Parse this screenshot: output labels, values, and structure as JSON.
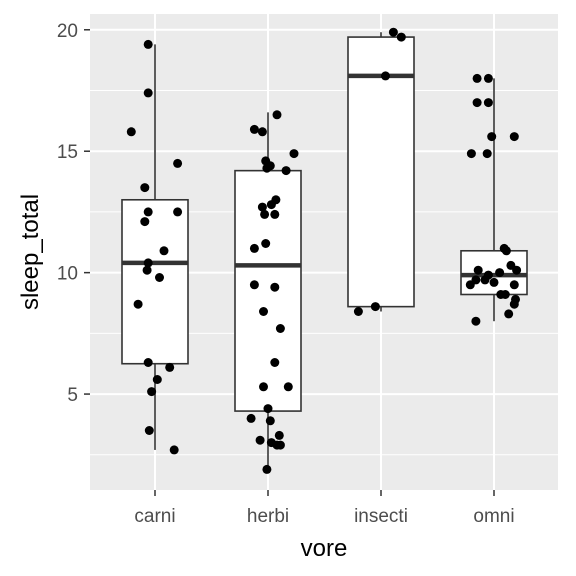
{
  "chart_data": {
    "type": "boxplot_with_jitter",
    "xlabel": "vore",
    "ylabel": "sleep_total",
    "ylim": [
      1.05,
      20.65
    ],
    "y_major_ticks": [
      5,
      10,
      15,
      20
    ],
    "y_minor_ticks": [
      2.5,
      7.5,
      12.5,
      17.5
    ],
    "grid": true,
    "legend": "none",
    "colors": {
      "panel_background": "#ebebeb",
      "grid": "#ffffff",
      "box_fill": "#ffffff",
      "box_line": "#333333",
      "points": "#000000",
      "tick_text": "#4d4d4d"
    },
    "categories": [
      "carni",
      "herbi",
      "insecti",
      "omni"
    ],
    "boxes": [
      {
        "category": "carni",
        "whisker_low": 2.7,
        "q1": 6.25,
        "median": 10.4,
        "q3": 13.0,
        "whisker_high": 19.4
      },
      {
        "category": "herbi",
        "whisker_low": 1.9,
        "q1": 4.3,
        "median": 10.3,
        "q3": 14.2,
        "whisker_high": 16.6
      },
      {
        "category": "insecti",
        "whisker_low": 8.4,
        "q1": 8.6,
        "median": 18.1,
        "q3": 19.7,
        "whisker_high": 19.9
      },
      {
        "category": "omni",
        "whisker_low": 8.0,
        "q1": 9.1,
        "median": 9.9,
        "q3": 10.9,
        "whisker_high": 18.0
      }
    ],
    "points": [
      {
        "category": "carni",
        "jitter": -0.06,
        "y": 19.4
      },
      {
        "category": "carni",
        "jitter": -0.06,
        "y": 17.4
      },
      {
        "category": "carni",
        "jitter": -0.21,
        "y": 15.8
      },
      {
        "category": "carni",
        "jitter": 0.2,
        "y": 14.5
      },
      {
        "category": "carni",
        "jitter": -0.09,
        "y": 13.5
      },
      {
        "category": "carni",
        "jitter": 0.2,
        "y": 12.5
      },
      {
        "category": "carni",
        "jitter": -0.06,
        "y": 12.5
      },
      {
        "category": "carni",
        "jitter": -0.09,
        "y": 12.1
      },
      {
        "category": "carni",
        "jitter": 0.08,
        "y": 10.9
      },
      {
        "category": "carni",
        "jitter": -0.06,
        "y": 10.4
      },
      {
        "category": "carni",
        "jitter": -0.07,
        "y": 10.1
      },
      {
        "category": "carni",
        "jitter": 0.04,
        "y": 9.8
      },
      {
        "category": "carni",
        "jitter": -0.15,
        "y": 8.7
      },
      {
        "category": "carni",
        "jitter": -0.06,
        "y": 6.3
      },
      {
        "category": "carni",
        "jitter": 0.13,
        "y": 6.1
      },
      {
        "category": "carni",
        "jitter": 0.02,
        "y": 5.6
      },
      {
        "category": "carni",
        "jitter": -0.03,
        "y": 5.1
      },
      {
        "category": "carni",
        "jitter": -0.05,
        "y": 3.5
      },
      {
        "category": "carni",
        "jitter": 0.17,
        "y": 2.7
      },
      {
        "category": "herbi",
        "jitter": 0.08,
        "y": 16.5
      },
      {
        "category": "herbi",
        "jitter": -0.12,
        "y": 15.9
      },
      {
        "category": "herbi",
        "jitter": -0.05,
        "y": 15.8
      },
      {
        "category": "herbi",
        "jitter": 0.23,
        "y": 14.9
      },
      {
        "category": "herbi",
        "jitter": -0.02,
        "y": 14.6
      },
      {
        "category": "herbi",
        "jitter": 0.02,
        "y": 14.4
      },
      {
        "category": "herbi",
        "jitter": -0.01,
        "y": 14.3
      },
      {
        "category": "herbi",
        "jitter": 0.16,
        "y": 14.2
      },
      {
        "category": "herbi",
        "jitter": 0.07,
        "y": 13.0
      },
      {
        "category": "herbi",
        "jitter": -0.05,
        "y": 12.7
      },
      {
        "category": "herbi",
        "jitter": 0.03,
        "y": 12.8
      },
      {
        "category": "herbi",
        "jitter": 0.06,
        "y": 12.4
      },
      {
        "category": "herbi",
        "jitter": -0.03,
        "y": 12.4
      },
      {
        "category": "herbi",
        "jitter": -0.02,
        "y": 11.2
      },
      {
        "category": "herbi",
        "jitter": -0.12,
        "y": 11.0
      },
      {
        "category": "herbi",
        "jitter": -0.12,
        "y": 9.5
      },
      {
        "category": "herbi",
        "jitter": 0.06,
        "y": 9.4
      },
      {
        "category": "herbi",
        "jitter": -0.04,
        "y": 8.4
      },
      {
        "category": "herbi",
        "jitter": 0.11,
        "y": 7.7
      },
      {
        "category": "herbi",
        "jitter": 0.06,
        "y": 6.3
      },
      {
        "category": "herbi",
        "jitter": -0.04,
        "y": 5.3
      },
      {
        "category": "herbi",
        "jitter": 0.18,
        "y": 5.3
      },
      {
        "category": "herbi",
        "jitter": 0.0,
        "y": 4.4
      },
      {
        "category": "herbi",
        "jitter": -0.15,
        "y": 4.0
      },
      {
        "category": "herbi",
        "jitter": 0.02,
        "y": 3.9
      },
      {
        "category": "herbi",
        "jitter": 0.1,
        "y": 3.3
      },
      {
        "category": "herbi",
        "jitter": -0.07,
        "y": 3.1
      },
      {
        "category": "herbi",
        "jitter": 0.03,
        "y": 3.0
      },
      {
        "category": "herbi",
        "jitter": 0.08,
        "y": 2.9
      },
      {
        "category": "herbi",
        "jitter": 0.11,
        "y": 2.9
      },
      {
        "category": "herbi",
        "jitter": -0.01,
        "y": 1.9
      },
      {
        "category": "insecti",
        "jitter": 0.11,
        "y": 19.9
      },
      {
        "category": "insecti",
        "jitter": 0.18,
        "y": 19.7
      },
      {
        "category": "insecti",
        "jitter": 0.04,
        "y": 18.1
      },
      {
        "category": "insecti",
        "jitter": -0.05,
        "y": 8.6
      },
      {
        "category": "insecti",
        "jitter": -0.2,
        "y": 8.4
      },
      {
        "category": "omni",
        "jitter": -0.15,
        "y": 18.0
      },
      {
        "category": "omni",
        "jitter": -0.05,
        "y": 18.0
      },
      {
        "category": "omni",
        "jitter": -0.15,
        "y": 17.0
      },
      {
        "category": "omni",
        "jitter": -0.05,
        "y": 17.0
      },
      {
        "category": "omni",
        "jitter": -0.02,
        "y": 15.6
      },
      {
        "category": "omni",
        "jitter": 0.18,
        "y": 15.6
      },
      {
        "category": "omni",
        "jitter": -0.2,
        "y": 14.9
      },
      {
        "category": "omni",
        "jitter": -0.06,
        "y": 14.9
      },
      {
        "category": "omni",
        "jitter": 0.09,
        "y": 11.0
      },
      {
        "category": "omni",
        "jitter": 0.11,
        "y": 10.9
      },
      {
        "category": "omni",
        "jitter": 0.15,
        "y": 10.3
      },
      {
        "category": "omni",
        "jitter": -0.14,
        "y": 10.1
      },
      {
        "category": "omni",
        "jitter": 0.2,
        "y": 10.1
      },
      {
        "category": "omni",
        "jitter": 0.05,
        "y": 10.0
      },
      {
        "category": "omni",
        "jitter": -0.05,
        "y": 9.9
      },
      {
        "category": "omni",
        "jitter": -0.16,
        "y": 9.7
      },
      {
        "category": "omni",
        "jitter": -0.08,
        "y": 9.7
      },
      {
        "category": "omni",
        "jitter": 0.0,
        "y": 9.6
      },
      {
        "category": "omni",
        "jitter": 0.18,
        "y": 9.5
      },
      {
        "category": "omni",
        "jitter": -0.21,
        "y": 9.5
      },
      {
        "category": "omni",
        "jitter": 0.06,
        "y": 9.1
      },
      {
        "category": "omni",
        "jitter": 0.1,
        "y": 9.1
      },
      {
        "category": "omni",
        "jitter": 0.19,
        "y": 8.9
      },
      {
        "category": "omni",
        "jitter": 0.18,
        "y": 8.7
      },
      {
        "category": "omni",
        "jitter": 0.13,
        "y": 8.3
      },
      {
        "category": "omni",
        "jitter": -0.16,
        "y": 8.0
      }
    ]
  }
}
